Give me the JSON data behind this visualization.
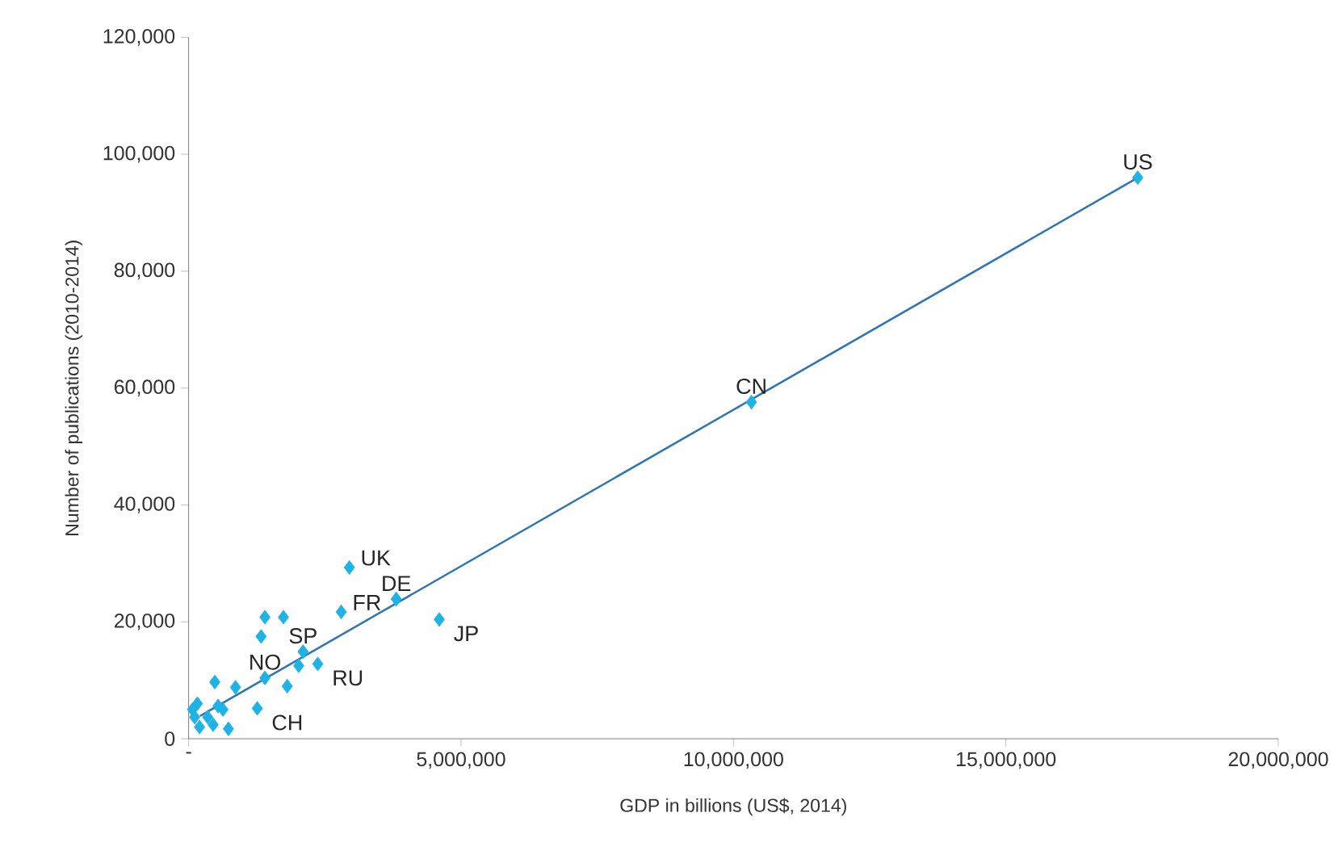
{
  "chart_data": {
    "type": "scatter",
    "xlabel": "GDP in billions (US$, 2014)",
    "ylabel": "Number of publications (2010-2014)",
    "xlim": [
      0,
      20000000
    ],
    "ylim": [
      0,
      120000
    ],
    "xticks": [
      {
        "value": 0,
        "label": "-"
      },
      {
        "value": 5000000,
        "label": "5,000,000"
      },
      {
        "value": 10000000,
        "label": "10,000,000"
      },
      {
        "value": 15000000,
        "label": "15,000,000"
      },
      {
        "value": 20000000,
        "label": "20,000,000"
      }
    ],
    "yticks": [
      0,
      {
        "value": 20000,
        "label": "20,000"
      },
      {
        "value": 40000,
        "label": "40,000"
      },
      {
        "value": 60000,
        "label": "60,000"
      },
      {
        "value": 80000,
        "label": "80,000"
      },
      {
        "value": 100000,
        "label": "100,000"
      },
      {
        "value": 120000,
        "label": "120,000"
      }
    ],
    "grid": false,
    "marker": "diamond",
    "series": [
      {
        "type": "scatter",
        "color": "#1fb3e5",
        "x": [
          17420000,
          10330000,
          2950000,
          3810000,
          4600000,
          2800000,
          1400000,
          1740000,
          1330000,
          2100000,
          2020000,
          2370000,
          1810000,
          1400000,
          480000,
          860000,
          1260000,
          730000,
          160000,
          540000,
          110000,
          350000,
          200000,
          450000,
          630000,
          70000
        ],
        "values": [
          96000,
          57600,
          29300,
          23900,
          20400,
          21700,
          20800,
          20800,
          17500,
          14900,
          12500,
          12800,
          9000,
          10400,
          9700,
          8800,
          5200,
          1700,
          6000,
          5600,
          3700,
          3700,
          2000,
          2400,
          5000,
          5000
        ]
      },
      {
        "type": "line",
        "color": "#2e75b6",
        "marker": "none",
        "line_style": "solid",
        "x": [
          210000,
          17420000
        ],
        "values": [
          3900,
          96000
        ]
      }
    ],
    "annotations": [
      {
        "text": "US",
        "x": 17420000,
        "y": 96000
      },
      {
        "text": "CN",
        "x": 10330000,
        "y": 57600
      },
      {
        "text": "UK",
        "x": 2950000,
        "y": 29300
      },
      {
        "text": "DE",
        "x": 3810000,
        "y": 23900
      },
      {
        "text": "JP",
        "x": 4600000,
        "y": 20400
      },
      {
        "text": "FR",
        "x": 2800000,
        "y": 21700
      },
      {
        "text": "SP",
        "x": 2100000,
        "y": 14900
      },
      {
        "text": "NO",
        "x": 1400000,
        "y": 10400
      },
      {
        "text": "RU",
        "x": 2370000,
        "y": 12800
      },
      {
        "text": "CH",
        "x": 1260000,
        "y": 5200
      }
    ]
  }
}
